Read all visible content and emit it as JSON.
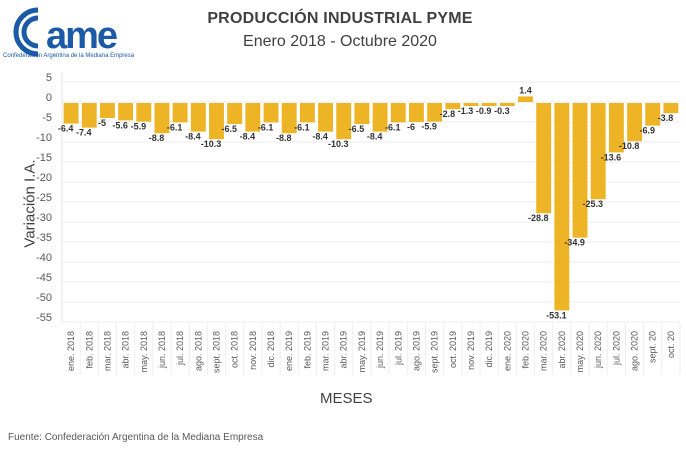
{
  "logo": {
    "name": "came",
    "subtitle": "Confederación Argentina de la Mediana Empresa",
    "color": "#1a5aa6"
  },
  "source": "Fuente: Confederación Argentina de la Mediana Empresa",
  "chart_data": {
    "type": "bar",
    "title": "PRODUCCIÓN INDUSTRIAL PYME",
    "subtitle": "Enero 2018 - Octubre 2020",
    "xlabel": "MESES",
    "ylabel": "Variación I.A.",
    "ylim": [
      -55,
      5
    ],
    "yticks": [
      5,
      0,
      -5,
      -10,
      -15,
      -20,
      -25,
      -30,
      -35,
      -40,
      -45,
      -50,
      -55
    ],
    "grid": true,
    "legend": "none",
    "bar_color": "#EDB426",
    "categories": [
      "ene. 2018",
      "feb. 2018",
      "mar. 2018",
      "abr. 2018",
      "may. 2018",
      "jun. 2018",
      "jul. 2018",
      "ago. 2018",
      "sept. 2018",
      "oct. 2018",
      "nov. 2018",
      "dic. 2018",
      "ene. 2019",
      "feb. 2019",
      "mar. 2019",
      "abr. 2019",
      "may. 2019",
      "jun. 2019",
      "jul. 2019",
      "ago. 2019",
      "sept. 2019",
      "oct. 2019",
      "nov. 2019",
      "dic. 2019",
      "ene. 2020",
      "feb. 2020",
      "mar. 2020",
      "abr. 2020",
      "may. 2020",
      "jun. 2020",
      "jul. 2020",
      "ago. 2020",
      "sept. 20",
      "oct. 20"
    ],
    "values": [
      -6.4,
      -7.4,
      -5,
      -5.6,
      -5.9,
      -8.8,
      -6.1,
      -8.4,
      -10.3,
      -6.5,
      -8.4,
      -6.1,
      -8.8,
      -6.1,
      -8.4,
      -10.3,
      -6.5,
      -8.4,
      -6.1,
      -6,
      -5.9,
      -2.8,
      -1.3,
      -0.9,
      -0.3,
      1.4,
      -28.8,
      -53.1,
      -34.9,
      -25.3,
      -13.6,
      -10.8,
      -6.9,
      -3.8
    ]
  }
}
